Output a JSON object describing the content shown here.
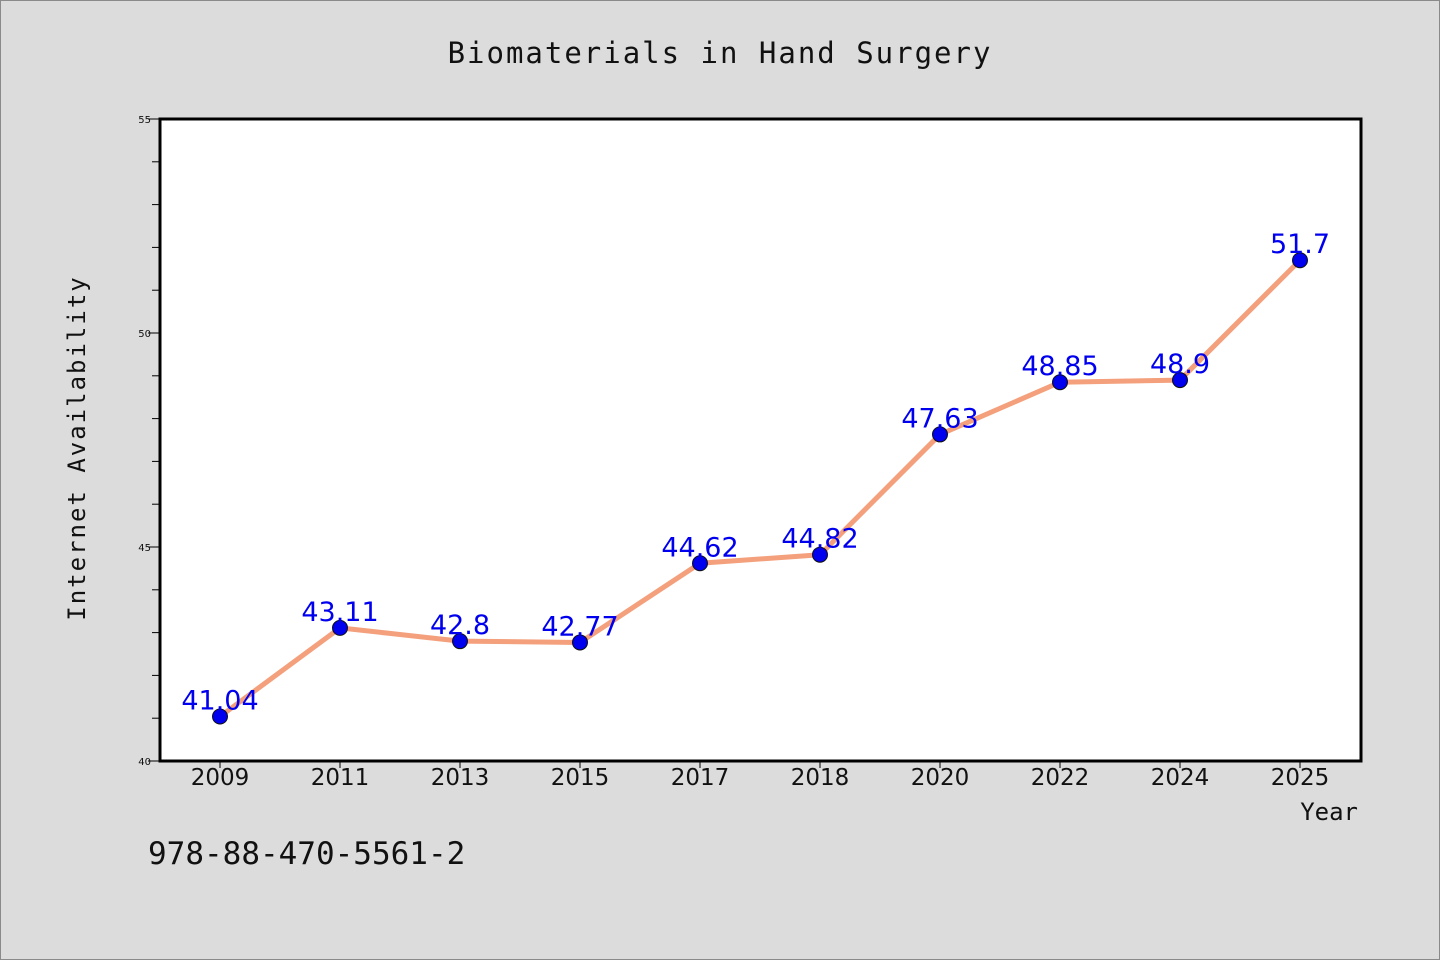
{
  "chart_data": {
    "type": "line",
    "title": "Biomaterials in Hand Surgery",
    "xlabel": "Year",
    "ylabel": "Internet Availability",
    "categories": [
      "2009",
      "2011",
      "2013",
      "2015",
      "2017",
      "2018",
      "2020",
      "2022",
      "2024",
      "2025"
    ],
    "series": [
      {
        "values": [
          41.04,
          43.11,
          42.8,
          42.77,
          44.62,
          44.82,
          47.63,
          48.85,
          48.9,
          51.7
        ],
        "labels": [
          "41.04",
          "43.11",
          "42.8",
          "42.77",
          "44.62",
          "44.82",
          "47.63",
          "48.85",
          "48.9",
          "51.7"
        ]
      }
    ],
    "ylim": [
      40,
      55
    ],
    "yticks": [
      "40",
      "45",
      "50",
      "55"
    ],
    "y_minor_step": 1,
    "grid": false,
    "line_color": "#f4a07c",
    "marker_color": "#0000ee",
    "label_color": "#0000ee"
  },
  "footer_text": "978-88-470-5561-2"
}
